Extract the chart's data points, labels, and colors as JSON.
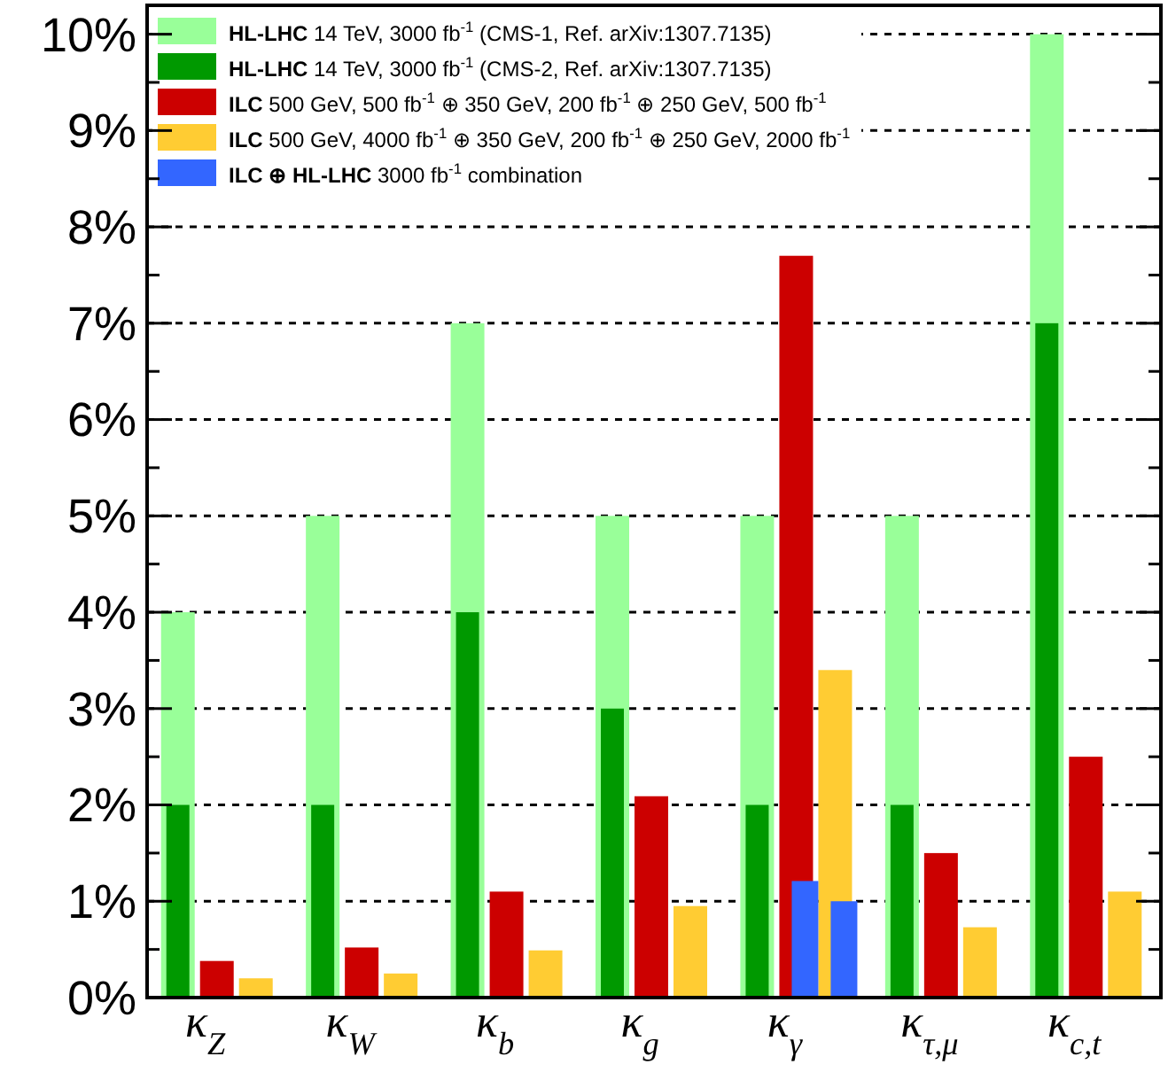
{
  "chart_data": {
    "type": "bar",
    "categories": [
      "κ$_{Z}$",
      "κ$_{W}$",
      "κ$_{b}$",
      "κ$_{g}$",
      "κ$_{γ}$",
      "κ$_{τ,μ}$",
      "κ$_{c,t}$"
    ],
    "ylim": [
      0,
      10.3
    ],
    "yticks": [
      {
        "value": 0,
        "label": "0%"
      },
      {
        "value": 1,
        "label": "1%"
      },
      {
        "value": 2,
        "label": "2%"
      },
      {
        "value": 3,
        "label": "3%"
      },
      {
        "value": 4,
        "label": "4%"
      },
      {
        "value": 5,
        "label": "5%"
      },
      {
        "value": 6,
        "label": "6%"
      },
      {
        "value": 7,
        "label": "7%"
      },
      {
        "value": 8,
        "label": "8%"
      },
      {
        "value": 9,
        "label": "9%"
      },
      {
        "value": 10,
        "label": "10%"
      }
    ],
    "grid": "y",
    "legend": "top left",
    "series": [
      {
        "name": "HL-LHC 14 TeV, 3000 fb$^{-1}$ (CMS-1, Ref. arXiv:1307.7135)",
        "color": "#99ff99",
        "values": [
          4,
          5,
          7,
          5,
          5,
          5,
          10
        ]
      },
      {
        "name": "HL-LHC 14 TeV, 3000 fb$^{-1}$ (CMS-2, Ref. arXiv:1307.7135)",
        "color": "#009900",
        "values": [
          2,
          2,
          4,
          3,
          2,
          2,
          7
        ]
      },
      {
        "name": "ILC 500 GeV, 500 fb$^{-1}$ ⊕ 350 GeV, 200 fb$^{-1}$ ⊕ 250 GeV, 500 fb$^{-1}$",
        "color": "#cc0000",
        "values": [
          0.38,
          0.52,
          1.1,
          2.09,
          7.7,
          1.5,
          2.5
        ]
      },
      {
        "name": "ILC 500 GeV, 4000 fb$^{-1}$ ⊕ 350 GeV, 200 fb$^{-1}$ ⊕ 250 GeV, 2000 fb$^{-1}$",
        "color": "#ffcc33",
        "values": [
          0.2,
          0.25,
          0.49,
          0.95,
          3.4,
          0.73,
          1.1
        ]
      },
      {
        "name": "ILC ⊕ HL-LHC 3000 fb$^{-1}$ combination",
        "color": "#3366ff",
        "values": [
          null,
          null,
          null,
          null,
          1.21,
          null,
          null
        ]
      },
      {
        "color": "#3366ff",
        "values": [
          null,
          null,
          null,
          null,
          1.0,
          null,
          null
        ]
      }
    ]
  }
}
